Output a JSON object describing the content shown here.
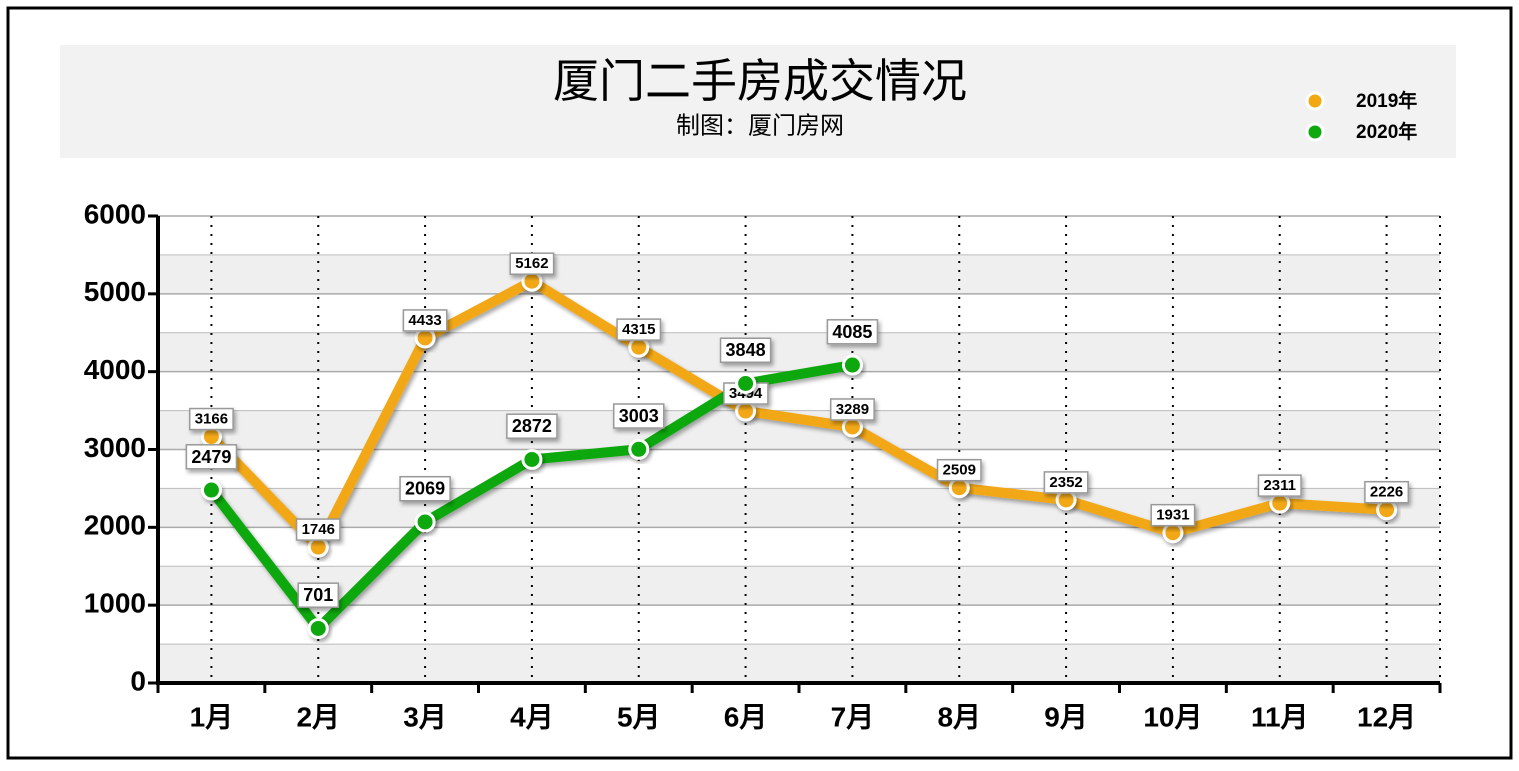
{
  "chart_data": {
    "type": "line",
    "title": "厦门二手房成交情况",
    "subtitle": "制图：厦门房网",
    "categories": [
      "1月",
      "2月",
      "3月",
      "4月",
      "5月",
      "6月",
      "7月",
      "8月",
      "9月",
      "10月",
      "11月",
      "12月"
    ],
    "series": [
      {
        "name": "2019年",
        "color": "#f2a813",
        "values": [
          3166,
          1746,
          4433,
          5162,
          4315,
          3494,
          3289,
          2509,
          2352,
          1931,
          2311,
          2226
        ]
      },
      {
        "name": "2020年",
        "color": "#0fa80f",
        "values": [
          2479,
          701,
          2069,
          2872,
          3003,
          3848,
          4085,
          null,
          null,
          null,
          null,
          null
        ]
      }
    ],
    "ylim": [
      0,
      6000
    ],
    "yticks": [
      0,
      1000,
      2000,
      3000,
      4000,
      5000,
      6000
    ],
    "grid": true,
    "legend": "upper right"
  }
}
